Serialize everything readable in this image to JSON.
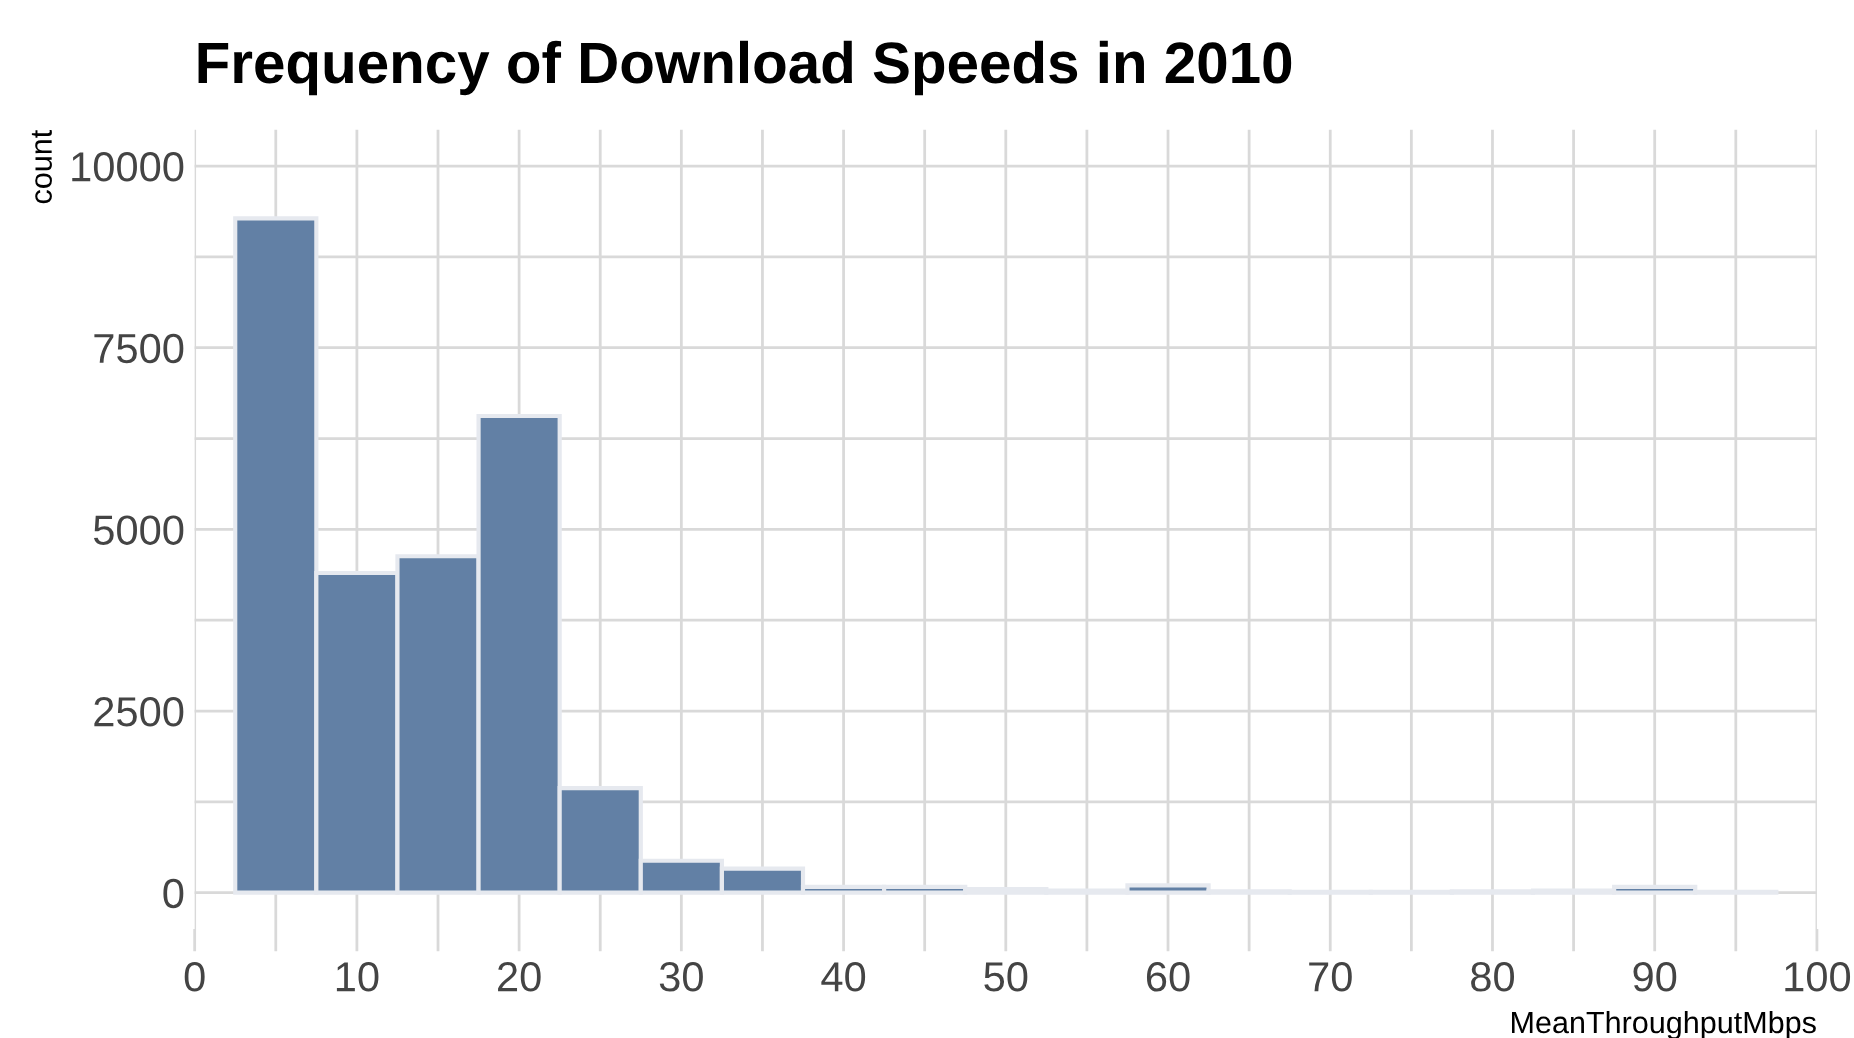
{
  "chart_data": {
    "type": "histogram",
    "title": "Frequency of Download Speeds in 2010",
    "xlabel": "MeanThroughputMbps",
    "ylabel": "count",
    "bins": [
      2.5,
      7.5,
      12.5,
      17.5,
      22.5,
      27.5,
      32.5,
      37.5,
      42.5,
      47.5,
      52.5,
      57.5,
      62.5,
      67.5,
      72.5,
      77.5,
      82.5,
      87.5,
      92.5,
      97.5
    ],
    "values": [
      9280,
      4400,
      4630,
      6560,
      1440,
      440,
      330,
      80,
      80,
      50,
      30,
      100,
      20,
      10,
      10,
      20,
      30,
      80,
      10
    ],
    "color": "#6280a5",
    "xlim": [
      0,
      100
    ],
    "ylim": [
      -500,
      10500
    ],
    "xticks": [
      0,
      {
        "value": 5,
        "label": null
      },
      10,
      {
        "value": 15,
        "label": null
      },
      20,
      {
        "value": 25,
        "label": null
      },
      30,
      {
        "value": 35,
        "label": null
      },
      40,
      {
        "value": 45,
        "label": null
      },
      50,
      {
        "value": 55,
        "label": null
      },
      60,
      {
        "value": 65,
        "label": null
      },
      70,
      {
        "value": 75,
        "label": null
      },
      80,
      {
        "value": 85,
        "label": null
      },
      90,
      {
        "value": 95,
        "label": null
      },
      100
    ],
    "yticks": [
      0,
      {
        "value": 1250,
        "label": null
      },
      2500,
      {
        "value": 3750,
        "label": null
      },
      5000,
      {
        "value": 6250,
        "label": null
      },
      7500,
      {
        "value": 8750,
        "label": null
      },
      10000
    ],
    "grid": true
  }
}
